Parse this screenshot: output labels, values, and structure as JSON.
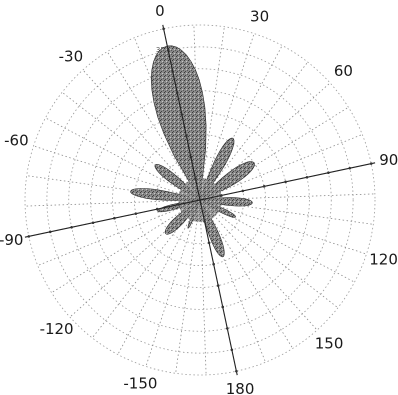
{
  "chart_data": {
    "type": "polar",
    "angular_ticks": [
      {
        "angle": 0,
        "label": "0"
      },
      {
        "angle": 30,
        "label": "30"
      },
      {
        "angle": 60,
        "label": "60"
      },
      {
        "angle": 90,
        "label": "90"
      },
      {
        "angle": 120,
        "label": "120"
      },
      {
        "angle": 150,
        "label": "150"
      },
      {
        "angle": 180,
        "label": "180"
      },
      {
        "angle": -150,
        "label": "-150"
      },
      {
        "angle": -120,
        "label": "-120"
      },
      {
        "angle": -90,
        "label": "-90"
      },
      {
        "angle": -60,
        "label": "-60"
      },
      {
        "angle": -30,
        "label": "-30"
      }
    ],
    "radial_ticks": [
      "0",
      "5",
      "10",
      "15",
      "20",
      "25",
      "30",
      "35"
    ],
    "r_max": 40,
    "grid": true,
    "lobes": [
      {
        "angle_start": -20,
        "angle_end": 20,
        "peak": 36
      },
      {
        "angle_start": 30,
        "angle_end": 50,
        "peak": 16
      },
      {
        "angle_start": 55,
        "angle_end": 80,
        "peak": 15
      },
      {
        "angle_start": 95,
        "angle_end": 115,
        "peak": 12
      },
      {
        "angle_start": 120,
        "angle_end": 135,
        "peak": 9
      },
      {
        "angle_start": 160,
        "angle_end": 180,
        "peak": 14
      },
      {
        "angle_start": -150,
        "angle_end": -140,
        "peak": 7
      },
      {
        "angle_start": -135,
        "angle_end": -110,
        "peak": 11
      },
      {
        "angle_start": -100,
        "angle_end": -85,
        "peak": 10
      },
      {
        "angle_start": -80,
        "angle_end": -62,
        "peak": 16
      },
      {
        "angle_start": -50,
        "angle_end": -30,
        "peak": 13
      }
    ],
    "colors": {
      "fill": "#7a7a7a",
      "axis": "#222222",
      "grid": "#9a9a9a"
    }
  }
}
